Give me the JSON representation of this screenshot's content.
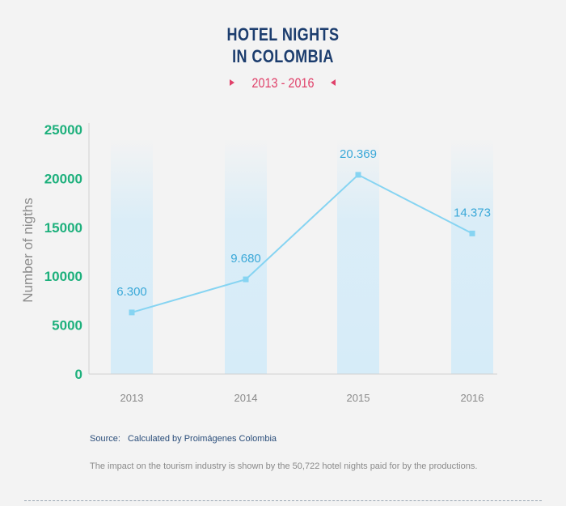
{
  "title_line1": "HOTEL NIGHTS",
  "title_line2": "IN COLOMBIA",
  "subtitle": "2013 - 2016",
  "colors": {
    "title": "#1c3d6e",
    "subtitle": "#e0416a",
    "line": "#86d4f2",
    "label": "#3aa8d8",
    "ytick": "#1db07c",
    "band": "#d6ecf8"
  },
  "chart_data": {
    "type": "line",
    "categories": [
      "2013",
      "2014",
      "2015",
      "2016"
    ],
    "values": [
      6300,
      9680,
      20369,
      14373
    ],
    "data_labels": [
      "6.300",
      "9.680",
      "20.369",
      "14.373"
    ],
    "ylabel": "Number of nigths",
    "xlabel": "",
    "ylim": [
      0,
      25000
    ],
    "yticks": [
      0,
      5000,
      10000,
      15000,
      20000,
      25000
    ],
    "grid": false,
    "legend": "none"
  },
  "source_label": "Source:",
  "source_text": "Calculated by Proimágenes Colombia",
  "note": "The impact on the tourism industry is shown by the 50,722 hotel nights paid for by the productions."
}
